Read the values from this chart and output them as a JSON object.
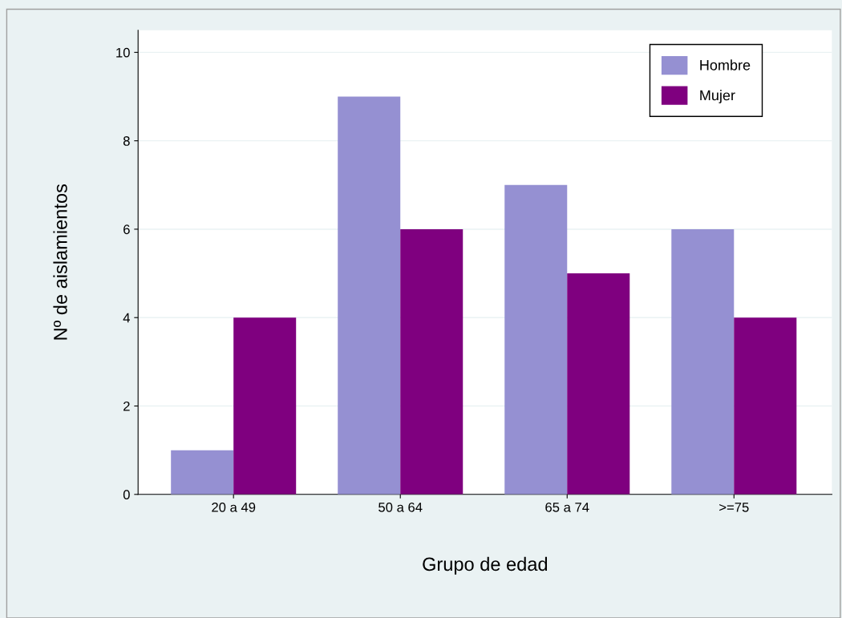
{
  "chart_data": {
    "type": "bar",
    "xlabel": "Grupo de edad",
    "ylabel": "Nº de aislamientos",
    "categories": [
      "20 a 49",
      "50 a 64",
      "65 a 74",
      ">=75"
    ],
    "series": [
      {
        "name": "Hombre",
        "color": "#9590d2",
        "values": [
          1,
          9,
          7,
          6
        ]
      },
      {
        "name": "Mujer",
        "color": "#7f007f",
        "values": [
          4,
          6,
          5,
          4
        ]
      }
    ],
    "ylim": [
      0,
      10.5
    ],
    "yticks": [
      0,
      2,
      4,
      6,
      8,
      10
    ],
    "grid": "y",
    "legend": "top right"
  }
}
